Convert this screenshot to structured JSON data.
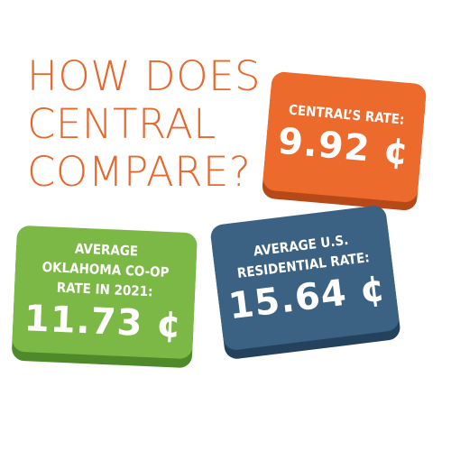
{
  "title": [
    "HOW DOES",
    "CENTRAL",
    "COMPARE?"
  ],
  "cards": [
    {
      "label": [
        "CENTRAL’S RATE:"
      ],
      "value": "9.92 ¢"
    },
    {
      "label": [
        "AVERAGE",
        "OKLAHOMA CO-OP",
        "RATE IN 2021:"
      ],
      "value": "11.73 ¢"
    },
    {
      "label": [
        "AVERAGE U.S.",
        "RESIDENTIAL RATE:"
      ],
      "value": "15.64 ¢"
    }
  ]
}
